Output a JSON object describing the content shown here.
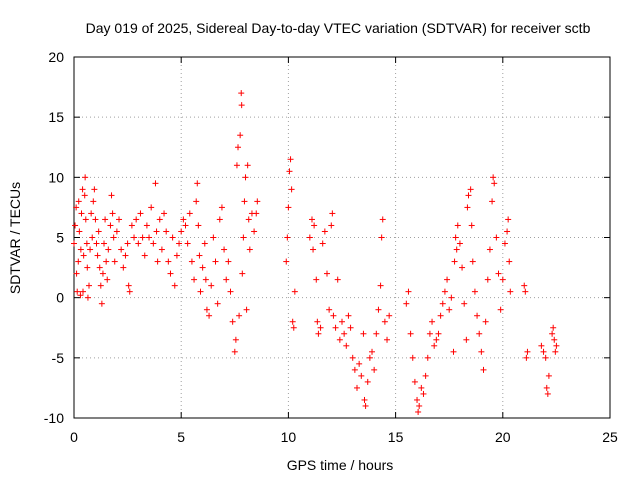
{
  "chart_data": {
    "type": "scatter",
    "title": "Day 019 of 2025, Sidereal Day-to-day VTEC variation (SDTVAR) for receiver sctb",
    "xlabel": "GPS time / hours",
    "ylabel": "SDTVAR / TECUs",
    "xlim": [
      0,
      25
    ],
    "ylim": [
      -10,
      20
    ],
    "xticks": [
      0,
      5,
      10,
      15,
      20,
      25
    ],
    "yticks": [
      -10,
      -5,
      0,
      5,
      10,
      15,
      20
    ],
    "xtick_labels": [
      "0",
      "5",
      "10",
      "15",
      "20",
      "25"
    ],
    "ytick_labels": [
      "-10",
      "-5",
      "0",
      "5",
      "10",
      "15",
      "20"
    ],
    "grid": true,
    "marker": "+",
    "color": "#ff0000",
    "series": [
      {
        "name": "SDTVAR",
        "points": [
          [
            0.0,
            4.5
          ],
          [
            0.05,
            6.0
          ],
          [
            0.1,
            7.5
          ],
          [
            0.12,
            2.0
          ],
          [
            0.15,
            0.5
          ],
          [
            0.2,
            3.0
          ],
          [
            0.22,
            8.0
          ],
          [
            0.25,
            5.5
          ],
          [
            0.3,
            0.2
          ],
          [
            0.32,
            4.0
          ],
          [
            0.35,
            7.0
          ],
          [
            0.4,
            9.0
          ],
          [
            0.42,
            0.5
          ],
          [
            0.45,
            3.5
          ],
          [
            0.5,
            8.5
          ],
          [
            0.52,
            10.0
          ],
          [
            0.55,
            6.5
          ],
          [
            0.6,
            4.5
          ],
          [
            0.62,
            2.5
          ],
          [
            0.65,
            0.0
          ],
          [
            0.7,
            1.0
          ],
          [
            0.75,
            4.0
          ],
          [
            0.8,
            7.0
          ],
          [
            0.85,
            5.0
          ],
          [
            0.9,
            8.0
          ],
          [
            0.95,
            9.0
          ],
          [
            1.0,
            6.5
          ],
          [
            1.05,
            4.5
          ],
          [
            1.1,
            3.5
          ],
          [
            1.15,
            5.5
          ],
          [
            1.2,
            2.5
          ],
          [
            1.25,
            1.0
          ],
          [
            1.3,
            -0.5
          ],
          [
            1.35,
            2.0
          ],
          [
            1.4,
            4.5
          ],
          [
            1.45,
            6.5
          ],
          [
            1.5,
            3.0
          ],
          [
            1.55,
            1.5
          ],
          [
            1.6,
            4.0
          ],
          [
            1.7,
            6.0
          ],
          [
            1.75,
            8.5
          ],
          [
            1.8,
            7.0
          ],
          [
            1.85,
            5.0
          ],
          [
            1.9,
            3.0
          ],
          [
            2.0,
            5.5
          ],
          [
            2.1,
            6.5
          ],
          [
            2.2,
            4.0
          ],
          [
            2.3,
            2.5
          ],
          [
            2.4,
            3.5
          ],
          [
            2.5,
            4.5
          ],
          [
            2.55,
            1.0
          ],
          [
            2.6,
            0.5
          ],
          [
            2.7,
            6.0
          ],
          [
            2.8,
            5.0
          ],
          [
            2.9,
            6.5
          ],
          [
            3.0,
            4.5
          ],
          [
            3.1,
            7.0
          ],
          [
            3.2,
            5.0
          ],
          [
            3.3,
            3.5
          ],
          [
            3.4,
            6.0
          ],
          [
            3.5,
            5.0
          ],
          [
            3.6,
            7.5
          ],
          [
            3.7,
            4.5
          ],
          [
            3.8,
            9.5
          ],
          [
            3.85,
            5.5
          ],
          [
            3.9,
            3.0
          ],
          [
            4.0,
            6.5
          ],
          [
            4.1,
            4.0
          ],
          [
            4.2,
            7.0
          ],
          [
            4.3,
            5.5
          ],
          [
            4.4,
            3.0
          ],
          [
            4.5,
            2.0
          ],
          [
            4.6,
            5.0
          ],
          [
            4.7,
            1.0
          ],
          [
            4.8,
            3.5
          ],
          [
            4.9,
            4.5
          ],
          [
            5.0,
            5.5
          ],
          [
            5.1,
            6.5
          ],
          [
            5.2,
            6.0
          ],
          [
            5.3,
            4.5
          ],
          [
            5.4,
            7.0
          ],
          [
            5.5,
            3.0
          ],
          [
            5.6,
            1.5
          ],
          [
            5.7,
            8.0
          ],
          [
            5.75,
            9.5
          ],
          [
            5.8,
            6.0
          ],
          [
            5.85,
            3.5
          ],
          [
            5.9,
            0.5
          ],
          [
            6.0,
            2.5
          ],
          [
            6.1,
            4.5
          ],
          [
            6.15,
            1.5
          ],
          [
            6.2,
            -1.0
          ],
          [
            6.3,
            -1.5
          ],
          [
            6.4,
            1.0
          ],
          [
            6.5,
            5.0
          ],
          [
            6.6,
            3.0
          ],
          [
            6.7,
            -0.5
          ],
          [
            6.8,
            6.5
          ],
          [
            6.9,
            7.5
          ],
          [
            7.0,
            4.0
          ],
          [
            7.1,
            1.5
          ],
          [
            7.2,
            3.0
          ],
          [
            7.3,
            0.5
          ],
          [
            7.4,
            -2.0
          ],
          [
            7.5,
            -4.5
          ],
          [
            7.55,
            -3.5
          ],
          [
            7.6,
            11.0
          ],
          [
            7.65,
            12.5
          ],
          [
            7.7,
            -1.5
          ],
          [
            7.75,
            13.5
          ],
          [
            7.8,
            17.0
          ],
          [
            7.82,
            16.0
          ],
          [
            7.85,
            2.0
          ],
          [
            7.9,
            5.0
          ],
          [
            7.95,
            8.0
          ],
          [
            8.0,
            10.0
          ],
          [
            8.05,
            -1.0
          ],
          [
            8.1,
            11.0
          ],
          [
            8.15,
            6.5
          ],
          [
            8.2,
            4.0
          ],
          [
            8.3,
            7.0
          ],
          [
            8.4,
            5.5
          ],
          [
            8.5,
            7.0
          ],
          [
            8.55,
            8.0
          ],
          [
            9.9,
            3.0
          ],
          [
            9.95,
            5.0
          ],
          [
            10.0,
            7.5
          ],
          [
            10.05,
            10.5
          ],
          [
            10.1,
            11.5
          ],
          [
            10.15,
            9.0
          ],
          [
            10.2,
            -2.0
          ],
          [
            10.25,
            -2.5
          ],
          [
            10.3,
            0.5
          ],
          [
            11.0,
            5.0
          ],
          [
            11.1,
            6.5
          ],
          [
            11.15,
            4.0
          ],
          [
            11.2,
            6.0
          ],
          [
            11.3,
            1.5
          ],
          [
            11.35,
            -2.0
          ],
          [
            11.4,
            -3.0
          ],
          [
            11.5,
            -2.5
          ],
          [
            11.6,
            4.5
          ],
          [
            11.7,
            5.5
          ],
          [
            11.8,
            2.0
          ],
          [
            11.9,
            -1.0
          ],
          [
            12.0,
            6.0
          ],
          [
            12.05,
            7.0
          ],
          [
            12.1,
            -1.5
          ],
          [
            12.2,
            -2.5
          ],
          [
            12.3,
            1.5
          ],
          [
            12.4,
            -3.5
          ],
          [
            12.5,
            -2.0
          ],
          [
            12.6,
            -3.0
          ],
          [
            12.7,
            -4.0
          ],
          [
            12.8,
            -1.5
          ],
          [
            12.9,
            -2.5
          ],
          [
            13.0,
            -5.0
          ],
          [
            13.1,
            -6.0
          ],
          [
            13.2,
            -7.5
          ],
          [
            13.3,
            -5.5
          ],
          [
            13.4,
            -6.5
          ],
          [
            13.5,
            -3.0
          ],
          [
            13.55,
            -8.5
          ],
          [
            13.6,
            -9.0
          ],
          [
            13.7,
            -7.0
          ],
          [
            13.8,
            -5.0
          ],
          [
            13.9,
            -4.5
          ],
          [
            14.0,
            -6.0
          ],
          [
            14.1,
            -3.0
          ],
          [
            14.2,
            -1.0
          ],
          [
            14.3,
            1.0
          ],
          [
            14.35,
            5.0
          ],
          [
            14.4,
            6.5
          ],
          [
            14.5,
            -2.0
          ],
          [
            14.6,
            -3.5
          ],
          [
            14.7,
            -1.5
          ],
          [
            15.5,
            -0.5
          ],
          [
            15.6,
            0.5
          ],
          [
            15.7,
            -3.0
          ],
          [
            15.8,
            -5.0
          ],
          [
            15.9,
            -7.0
          ],
          [
            16.0,
            -8.5
          ],
          [
            16.05,
            -9.5
          ],
          [
            16.1,
            -9.0
          ],
          [
            16.2,
            -7.5
          ],
          [
            16.3,
            -8.0
          ],
          [
            16.4,
            -6.5
          ],
          [
            16.5,
            -5.0
          ],
          [
            16.6,
            -3.0
          ],
          [
            16.7,
            -2.0
          ],
          [
            16.8,
            -4.0
          ],
          [
            16.9,
            -3.5
          ],
          [
            17.0,
            -3.0
          ],
          [
            17.1,
            -1.5
          ],
          [
            17.2,
            -0.5
          ],
          [
            17.3,
            0.5
          ],
          [
            17.4,
            1.5
          ],
          [
            17.5,
            -1.0
          ],
          [
            17.6,
            0.0
          ],
          [
            17.7,
            -4.5
          ],
          [
            17.75,
            3.0
          ],
          [
            17.8,
            5.0
          ],
          [
            17.85,
            4.0
          ],
          [
            17.9,
            6.0
          ],
          [
            18.0,
            4.5
          ],
          [
            18.1,
            2.5
          ],
          [
            18.2,
            -0.5
          ],
          [
            18.3,
            -3.5
          ],
          [
            18.35,
            7.5
          ],
          [
            18.4,
            8.5
          ],
          [
            18.5,
            9.0
          ],
          [
            18.55,
            6.0
          ],
          [
            18.6,
            3.0
          ],
          [
            18.7,
            0.5
          ],
          [
            18.8,
            -1.5
          ],
          [
            18.9,
            -3.0
          ],
          [
            19.0,
            -4.5
          ],
          [
            19.1,
            -6.0
          ],
          [
            19.2,
            -2.0
          ],
          [
            19.3,
            1.5
          ],
          [
            19.4,
            4.0
          ],
          [
            19.5,
            8.0
          ],
          [
            19.55,
            10.0
          ],
          [
            19.6,
            9.5
          ],
          [
            19.7,
            5.0
          ],
          [
            19.8,
            2.0
          ],
          [
            19.9,
            -1.0
          ],
          [
            20.0,
            1.5
          ],
          [
            20.1,
            4.5
          ],
          [
            20.2,
            5.5
          ],
          [
            20.25,
            6.5
          ],
          [
            20.3,
            3.0
          ],
          [
            20.35,
            0.5
          ],
          [
            21.0,
            1.0
          ],
          [
            21.05,
            0.5
          ],
          [
            21.1,
            -5.0
          ],
          [
            21.15,
            -4.5
          ],
          [
            21.8,
            -4.0
          ],
          [
            21.9,
            -4.5
          ],
          [
            22.0,
            -5.0
          ],
          [
            22.05,
            -7.5
          ],
          [
            22.1,
            -8.0
          ],
          [
            22.15,
            -6.5
          ],
          [
            22.3,
            -3.0
          ],
          [
            22.35,
            -2.5
          ],
          [
            22.4,
            -3.5
          ],
          [
            22.45,
            -4.5
          ],
          [
            22.5,
            -4.0
          ]
        ]
      }
    ]
  }
}
